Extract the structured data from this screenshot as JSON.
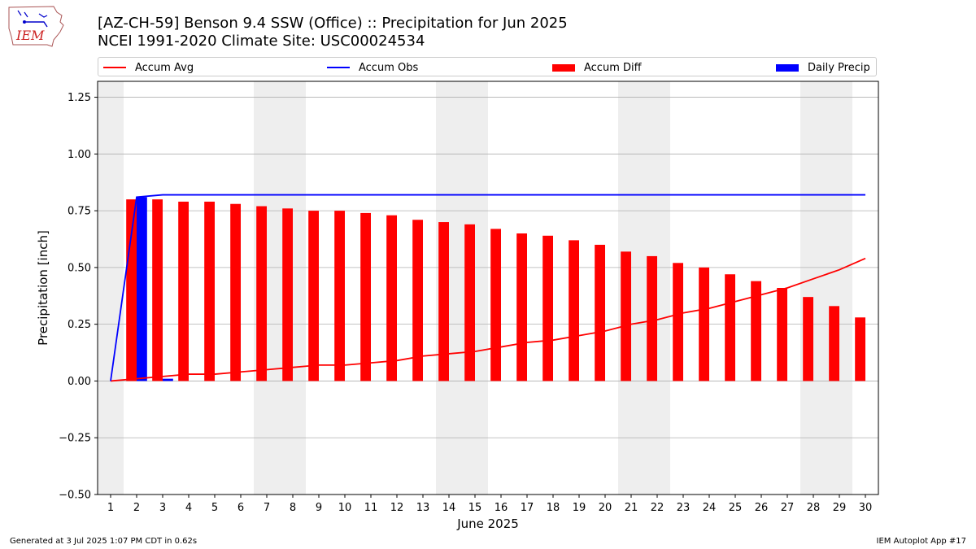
{
  "logo": {
    "text": "IEM",
    "name": "iem-logo"
  },
  "title": {
    "line1": "[AZ-CH-59] Benson 9.4 SSW (Office) :: Precipitation for Jun 2025",
    "line2": "NCEI 1991-2020 Climate Site: USC00024534"
  },
  "legend": {
    "accum_avg": "Accum Avg",
    "accum_obs": "Accum Obs",
    "accum_diff": "Accum Diff",
    "daily_precip": "Daily Precip"
  },
  "colors": {
    "accum_avg": "#ff0000",
    "accum_obs": "#0000ff",
    "accum_diff": "#ff0000",
    "daily_precip": "#0000ff",
    "weekend_shade": "#eeeeee",
    "grid": "#b0b0b0"
  },
  "footer": {
    "left": "Generated at 3 Jul 2025 1:07 PM CDT in 0.62s",
    "right": "IEM Autoplot App #17"
  },
  "chart_data": {
    "type": "bar",
    "xlabel": "June 2025",
    "ylabel": "Precipitation [inch]",
    "xlim": [
      0.5,
      30.5
    ],
    "ylim": [
      -0.5,
      1.32
    ],
    "x_ticks": [
      1,
      2,
      3,
      4,
      5,
      6,
      7,
      8,
      9,
      10,
      11,
      12,
      13,
      14,
      15,
      16,
      17,
      18,
      19,
      20,
      21,
      22,
      23,
      24,
      25,
      26,
      27,
      28,
      29,
      30
    ],
    "y_ticks": [
      -0.5,
      -0.25,
      0.0,
      0.25,
      0.5,
      0.75,
      1.0,
      1.25
    ],
    "y_tick_labels": [
      "−0.50",
      "−0.25",
      "0.00",
      "0.25",
      "0.50",
      "0.75",
      "1.00",
      "1.25"
    ],
    "grid": "horizontal",
    "legend_position": "top",
    "weekend_shading": [
      [
        0.5,
        1.5
      ],
      [
        6.5,
        8.5
      ],
      [
        13.5,
        15.5
      ],
      [
        20.5,
        22.5
      ],
      [
        27.5,
        29.5
      ]
    ],
    "days": [
      1,
      2,
      3,
      4,
      5,
      6,
      7,
      8,
      9,
      10,
      11,
      12,
      13,
      14,
      15,
      16,
      17,
      18,
      19,
      20,
      21,
      22,
      23,
      24,
      25,
      26,
      27,
      28,
      29,
      30
    ],
    "series": [
      {
        "name": "Accum Avg",
        "kind": "line",
        "values": [
          0.0,
          0.01,
          0.02,
          0.03,
          0.03,
          0.04,
          0.05,
          0.06,
          0.07,
          0.07,
          0.08,
          0.09,
          0.11,
          0.12,
          0.13,
          0.15,
          0.17,
          0.18,
          0.2,
          0.22,
          0.25,
          0.27,
          0.3,
          0.32,
          0.35,
          0.38,
          0.41,
          0.45,
          0.49,
          0.54
        ]
      },
      {
        "name": "Accum Obs",
        "kind": "line",
        "values": [
          0.0,
          0.81,
          0.82,
          0.82,
          0.82,
          0.82,
          0.82,
          0.82,
          0.82,
          0.82,
          0.82,
          0.82,
          0.82,
          0.82,
          0.82,
          0.82,
          0.82,
          0.82,
          0.82,
          0.82,
          0.82,
          0.82,
          0.82,
          0.82,
          0.82,
          0.82,
          0.82,
          0.82,
          0.82,
          0.82
        ]
      },
      {
        "name": "Accum Diff",
        "kind": "bar",
        "values": [
          0.0,
          0.8,
          0.8,
          0.79,
          0.79,
          0.78,
          0.77,
          0.76,
          0.75,
          0.75,
          0.74,
          0.73,
          0.71,
          0.7,
          0.69,
          0.67,
          0.65,
          0.64,
          0.62,
          0.6,
          0.57,
          0.55,
          0.52,
          0.5,
          0.47,
          0.44,
          0.41,
          0.37,
          0.33,
          0.28
        ]
      },
      {
        "name": "Daily Precip",
        "kind": "bar",
        "values": [
          0.0,
          0.81,
          0.01,
          0.0,
          0.0,
          0.0,
          0.0,
          0.0,
          0.0,
          0.0,
          0.0,
          0.0,
          0.0,
          0.0,
          0.0,
          0.0,
          0.0,
          0.0,
          0.0,
          0.0,
          0.0,
          0.0,
          0.0,
          0.0,
          0.0,
          0.0,
          0.0,
          0.0,
          0.0,
          0.0
        ]
      }
    ]
  }
}
